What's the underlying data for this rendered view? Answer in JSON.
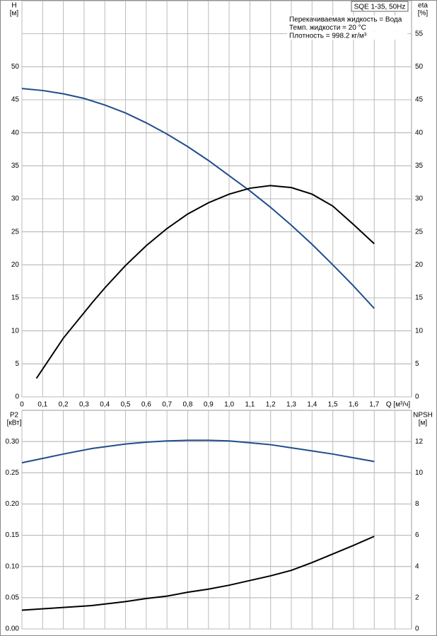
{
  "chart_data": [
    {
      "type": "line",
      "y_label": "H",
      "y_unit": "[м]",
      "y2_label": "eta",
      "y2_unit": "[%]",
      "x_label": "Q [м³/ч]",
      "info_box": "SQE 1-35, 50Hz",
      "info_lines": [
        "Перекачиваемая жидкость = Вода",
        "Темп. жидкости = 20 °C",
        "Плотность = 998.2 кг/м³"
      ],
      "xlim": [
        0,
        1.88
      ],
      "xticks": [
        0,
        {
          "value": 0.1,
          "label": "0,1"
        },
        {
          "value": 0.2,
          "label": "0,2"
        },
        {
          "value": 0.3,
          "label": "0,3"
        },
        {
          "value": 0.4,
          "label": "0,4"
        },
        {
          "value": 0.5,
          "label": "0,5"
        },
        {
          "value": 0.6,
          "label": "0,6"
        },
        {
          "value": 0.7,
          "label": "0,7"
        },
        {
          "value": 0.8,
          "label": "0,8"
        },
        {
          "value": 0.9,
          "label": "0,9"
        },
        {
          "value": 1.0,
          "label": "1,0"
        },
        {
          "value": 1.1,
          "label": "1,1"
        },
        {
          "value": 1.2,
          "label": "1,2"
        },
        {
          "value": 1.3,
          "label": "1,3"
        },
        {
          "value": 1.4,
          "label": "1,4"
        },
        {
          "value": 1.5,
          "label": "1,5"
        },
        {
          "value": 1.6,
          "label": "1,6"
        },
        {
          "value": 1.7,
          "label": "1,7"
        }
      ],
      "ylim": [
        0,
        60
      ],
      "yticks": [
        0,
        5,
        10,
        15,
        20,
        25,
        30,
        35,
        40,
        45,
        50
      ],
      "y2lim": [
        0,
        60
      ],
      "y2ticks": [
        0,
        5,
        10,
        15,
        20,
        25,
        30,
        35,
        40,
        45,
        50,
        55
      ],
      "grid": true,
      "series": [
        {
          "color": "#1f4e8c",
          "axis": "y",
          "x": [
            0,
            0.1,
            0.2,
            0.3,
            0.4,
            0.5,
            0.6,
            0.7,
            0.8,
            0.9,
            1.0,
            1.1,
            1.2,
            1.3,
            1.4,
            1.5,
            1.6,
            1.7
          ],
          "values": [
            46.7,
            46.4,
            45.9,
            45.2,
            44.2,
            43.0,
            41.5,
            39.8,
            37.9,
            35.8,
            33.5,
            31.2,
            28.7,
            26.0,
            23.1,
            20.0,
            16.8,
            13.4
          ]
        },
        {
          "color": "#000000",
          "axis": "y2",
          "x": [
            0.07,
            0.2,
            0.34,
            0.4,
            0.5,
            0.6,
            0.7,
            0.8,
            0.9,
            1.0,
            1.1,
            1.2,
            1.3,
            1.4,
            1.5,
            1.6,
            1.7
          ],
          "values": [
            2.8,
            8.9,
            14.3,
            16.5,
            19.9,
            22.9,
            25.5,
            27.7,
            29.4,
            30.7,
            31.6,
            32.0,
            31.7,
            30.7,
            28.9,
            26.1,
            23.2
          ]
        }
      ]
    },
    {
      "type": "line",
      "y_label": "P2",
      "y_unit": "[кВт]",
      "y2_label": "NPSH",
      "y2_unit": "[м]",
      "xlim": [
        0,
        1.88
      ],
      "xticks": [
        0,
        0.1,
        0.2,
        0.3,
        0.4,
        0.5,
        0.6,
        0.7,
        0.8,
        0.9,
        1.0,
        1.1,
        1.2,
        1.3,
        1.4,
        1.5,
        1.6,
        1.7
      ],
      "ylim": [
        0,
        0.35
      ],
      "yticks": [
        {
          "value": 0,
          "label": "0.00"
        },
        {
          "value": 0.05,
          "label": "0.05"
        },
        {
          "value": 0.1,
          "label": "0.10"
        },
        {
          "value": 0.15,
          "label": "0.15"
        },
        {
          "value": 0.2,
          "label": "0.20"
        },
        {
          "value": 0.25,
          "label": "0.25"
        },
        {
          "value": 0.3,
          "label": "0.30"
        }
      ],
      "y2lim": [
        0,
        14
      ],
      "y2ticks": [
        0,
        2,
        4,
        6,
        8,
        10,
        12
      ],
      "grid": true,
      "series": [
        {
          "color": "#1f4e8c",
          "axis": "y",
          "x": [
            0,
            0.1,
            0.2,
            0.34,
            0.5,
            0.6,
            0.7,
            0.8,
            0.9,
            1.0,
            1.1,
            1.2,
            1.3,
            1.4,
            1.5,
            1.6,
            1.7
          ],
          "values": [
            0.266,
            0.273,
            0.28,
            0.289,
            0.296,
            0.299,
            0.301,
            0.302,
            0.302,
            0.301,
            0.298,
            0.295,
            0.29,
            0.285,
            0.28,
            0.274,
            0.268
          ]
        },
        {
          "color": "#000000",
          "axis": "y2",
          "x": [
            0,
            0.34,
            0.5,
            0.6,
            0.7,
            0.8,
            0.9,
            1.0,
            1.1,
            1.2,
            1.3,
            1.4,
            1.5,
            1.6,
            1.7
          ],
          "values": [
            1.2,
            1.5,
            1.75,
            1.95,
            2.1,
            2.35,
            2.55,
            2.8,
            3.1,
            3.4,
            3.75,
            4.25,
            4.8,
            5.35,
            5.93
          ]
        }
      ]
    }
  ]
}
